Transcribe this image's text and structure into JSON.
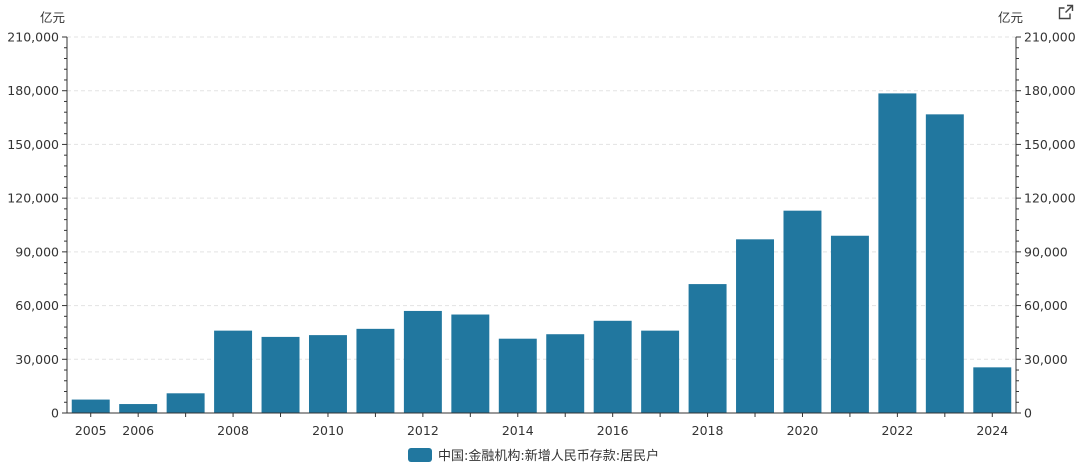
{
  "chart_data": {
    "type": "bar",
    "y_unit_left": "亿元",
    "y_unit_right": "亿元",
    "ylim": [
      0,
      210000
    ],
    "y_ticks": [
      0,
      30000,
      60000,
      90000,
      120000,
      150000,
      180000,
      210000
    ],
    "y_tick_labels": [
      "0",
      "30,000",
      "60,000",
      "90,000",
      "120,000",
      "150,000",
      "180,000",
      "210,000"
    ],
    "categories": [
      "2005",
      "2006",
      "2007",
      "2008",
      "2009",
      "2010",
      "2011",
      "2012",
      "2013",
      "2014",
      "2015",
      "2016",
      "2017",
      "2018",
      "2019",
      "2020",
      "2021",
      "2022",
      "2023",
      "2024"
    ],
    "x_tick_labels": [
      "2005",
      "2006",
      "",
      "2008",
      "",
      "2010",
      "",
      "2012",
      "",
      "2014",
      "",
      "2016",
      "",
      "2018",
      "",
      "2020",
      "",
      "2022",
      "",
      "2024"
    ],
    "series": [
      {
        "name": "中国:金融机构:新增人民币存款:居民户",
        "color": "#21779f",
        "values": [
          7500,
          5000,
          11000,
          46000,
          42500,
          43500,
          47000,
          57000,
          55000,
          41500,
          44000,
          51500,
          46000,
          72000,
          97000,
          113000,
          99000,
          178500,
          166800,
          25500
        ]
      }
    ],
    "grid": true,
    "legend": "bottom-center"
  },
  "toolbar": {
    "export_icon": "external-link-icon"
  }
}
